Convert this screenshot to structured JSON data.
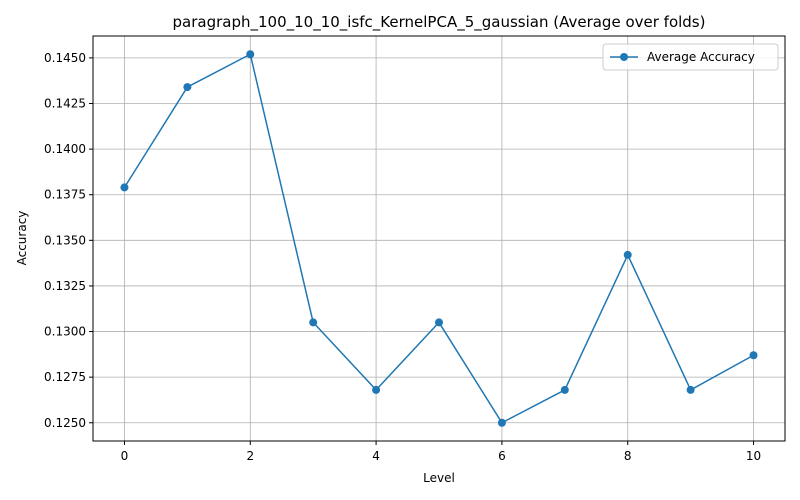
{
  "chart_data": {
    "type": "line",
    "title": "paragraph_100_10_10_isfc_KernelPCA_5_gaussian (Average over folds)",
    "xlabel": "Level",
    "ylabel": "Accuracy",
    "x": [
      0,
      1,
      2,
      3,
      4,
      5,
      6,
      7,
      8,
      9,
      10
    ],
    "series": [
      {
        "name": "Average Accuracy",
        "color": "#1f77b4",
        "marker": "circle",
        "values": [
          0.1379,
          0.1434,
          0.1452,
          0.1305,
          0.1268,
          0.1305,
          0.125,
          0.1268,
          0.1342,
          0.1268,
          0.1287
        ]
      }
    ],
    "xlim": [
      -0.5,
      10.5
    ],
    "ylim": [
      0.124,
      0.1462
    ],
    "xticks": [
      "0",
      "2",
      "4",
      "6",
      "8",
      "10"
    ],
    "yticks": [
      "0.1250",
      "0.1275",
      "0.1300",
      "0.1325",
      "0.1350",
      "0.1375",
      "0.1400",
      "0.1425",
      "0.1450"
    ],
    "grid": true,
    "legend_position": "top-right"
  }
}
